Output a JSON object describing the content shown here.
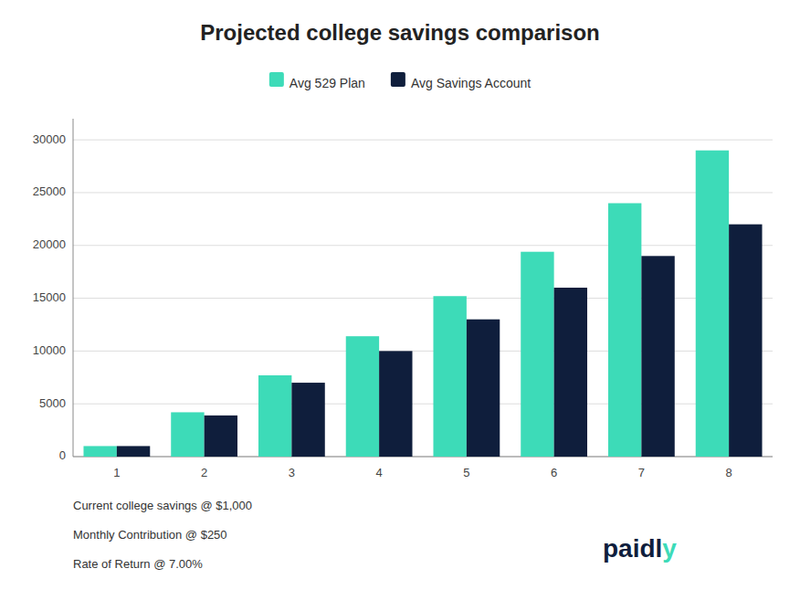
{
  "chart_data": {
    "type": "bar",
    "title": "Projected college savings comparison",
    "categories": [
      1,
      2,
      3,
      4,
      5,
      6,
      7,
      8
    ],
    "series": [
      {
        "name": "Avg 529 Plan",
        "color": "#3DDBB8",
        "values": [
          1000,
          4200,
          7700,
          11400,
          15200,
          19400,
          24000,
          29000
        ]
      },
      {
        "name": "Avg Savings Account",
        "color": "#0F1E3C",
        "values": [
          1000,
          3900,
          7000,
          10000,
          13000,
          16000,
          19000,
          22000
        ]
      }
    ],
    "ylim": [
      0,
      32000
    ],
    "yticks": [
      0,
      5000,
      10000,
      15000,
      20000,
      25000,
      30000
    ],
    "grid": true,
    "legend": "top",
    "annotations": [
      {
        "text": "Current college savings @ $1,000"
      },
      {
        "text": "Monthly Contribution @ $250"
      },
      {
        "text": "Rate of Return @ 7.00%"
      },
      {
        "text": "paidl",
        "color": "#0F1E3C"
      },
      {
        "text": "y",
        "color": "#3DDBB8"
      }
    ]
  }
}
